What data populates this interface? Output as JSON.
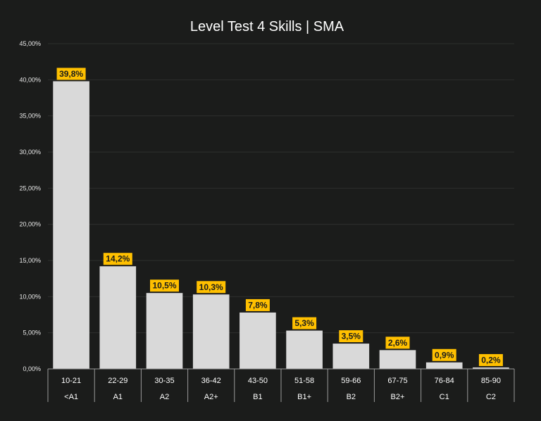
{
  "chart_data": {
    "type": "bar",
    "title": "Level Test 4 Skills | SMA",
    "categories": [
      "10-21",
      "22-29",
      "30-35",
      "36-42",
      "43-50",
      "51-58",
      "59-66",
      "67-75",
      "76-84",
      "85-90"
    ],
    "levels": [
      "<A1",
      "A1",
      "A2",
      "A2+",
      "B1",
      "B1+",
      "B2",
      "B2+",
      "C1",
      "C2"
    ],
    "values": [
      39.8,
      14.2,
      10.5,
      10.3,
      7.8,
      5.3,
      3.5,
      2.6,
      0.9,
      0.2
    ],
    "data_labels": [
      "39,8%",
      "14,2%",
      "10,5%",
      "10,3%",
      "7,8%",
      "5,3%",
      "3,5%",
      "2,6%",
      "0,9%",
      "0,2%"
    ],
    "y_ticks": [
      0,
      5,
      10,
      15,
      20,
      25,
      30,
      35,
      40,
      45
    ],
    "y_tick_labels": [
      "0,00%",
      "5,00%",
      "10,00%",
      "15,00%",
      "20,00%",
      "25,00%",
      "30,00%",
      "35,00%",
      "40,00%",
      "45,00%"
    ],
    "ylim": [
      0,
      45
    ],
    "grid": true,
    "colors": {
      "background": "#1b1c1b",
      "bar": "#d9d9d9",
      "label_bg": "#ffc000",
      "label_text": "#1b1c1b",
      "text": "#ffffff",
      "gridline": "#2e2f2e",
      "axis_line": "#9a9a9a"
    }
  }
}
